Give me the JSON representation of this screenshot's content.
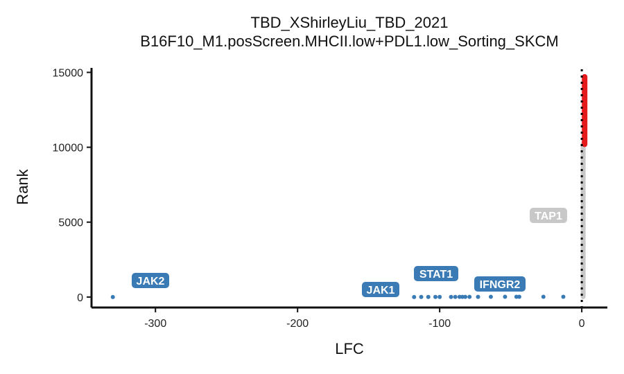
{
  "chart_data": {
    "type": "scatter",
    "title": "TBD_XShirleyLiu_TBD_2021",
    "subtitle": "B16F10_M1.posScreen.MHCII.low+PDL1.low_Sorting_SKCM",
    "xlabel": "LFC",
    "ylabel": "Rank",
    "xlim": [
      -345,
      18
    ],
    "ylim": [
      -700,
      15300
    ],
    "x_ticks": [
      -300,
      -200,
      -100,
      0
    ],
    "y_ticks": [
      0,
      5000,
      10000,
      15000
    ],
    "x_tick_labels": [
      "-300",
      "-200",
      "-100",
      "0"
    ],
    "y_tick_labels": [
      "0",
      "5000",
      "10000",
      "15000"
    ],
    "reference_line_x": 0,
    "colors": {
      "negative_hit": "#3a7ab5",
      "positive_hit": "#e41a1c",
      "background": "#c8c8c8",
      "axis": "#111111"
    },
    "negative_hits": [
      {
        "x": -330,
        "y": 1
      },
      {
        "x": -118,
        "y": 2
      },
      {
        "x": -113,
        "y": 3
      },
      {
        "x": -108,
        "y": 4
      },
      {
        "x": -103,
        "y": 5
      },
      {
        "x": -100,
        "y": 6
      },
      {
        "x": -92,
        "y": 7
      },
      {
        "x": -89,
        "y": 8
      },
      {
        "x": -86,
        "y": 9
      },
      {
        "x": -84,
        "y": 10
      },
      {
        "x": -82,
        "y": 11
      },
      {
        "x": -79,
        "y": 12
      },
      {
        "x": -73,
        "y": 13
      },
      {
        "x": -64,
        "y": 14
      },
      {
        "x": -54,
        "y": 15
      },
      {
        "x": -46,
        "y": 16
      },
      {
        "x": -44,
        "y": 17
      },
      {
        "x": -27,
        "y": 18
      },
      {
        "x": -13,
        "y": 19
      }
    ],
    "background_genes": {
      "x": 0,
      "y_range": [
        20,
        10200
      ]
    },
    "positive_hits": {
      "x": 2,
      "y_range": [
        10200,
        14700
      ]
    },
    "labels": [
      {
        "text": "JAK2",
        "x": -330,
        "y": 1,
        "color": "#3a7ab5"
      },
      {
        "text": "JAK1",
        "x": -133,
        "y": 1,
        "color": "#3a7ab5"
      },
      {
        "text": "STAT1",
        "x": -103,
        "y": 5,
        "color": "#3a7ab5"
      },
      {
        "text": "IFNGR2",
        "x": -73,
        "y": 13,
        "color": "#3a7ab5"
      },
      {
        "text": "TAP1",
        "x": -1,
        "y": 5400,
        "color": "#c8c8c8"
      }
    ]
  }
}
